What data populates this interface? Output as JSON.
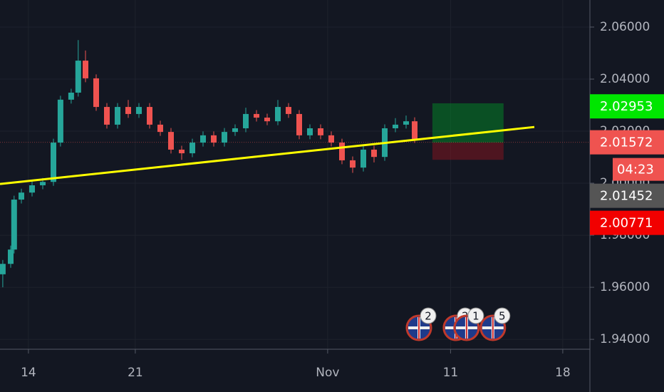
{
  "chart_data": {
    "type": "candlestick",
    "x": [
      -1.2,
      -0.83,
      -0.67,
      -0.33,
      0.17,
      0.67,
      1.17,
      1.5,
      2,
      2.33,
      2.67,
      3.17,
      3.67,
      4.17,
      4.67,
      5.17,
      5.67,
      6.17,
      6.67,
      7.17,
      7.67,
      8.17,
      8.67,
      9.17,
      9.67,
      10.17,
      10.67,
      11.17,
      11.67,
      12.17,
      12.67,
      13.17,
      13.67,
      14.17,
      14.67,
      15.17,
      15.67,
      16.17,
      16.67,
      17.17,
      17.67,
      18.07
    ],
    "open": [
      1.965,
      1.969,
      1.9745,
      1.9937,
      1.9964,
      1.9992,
      2.0005,
      2.0156,
      2.0321,
      2.0348,
      2.0471,
      2.0403,
      2.0293,
      2.0225,
      2.0293,
      2.0266,
      2.0293,
      2.0225,
      2.0197,
      2.0129,
      2.0115,
      2.0156,
      2.0184,
      2.0156,
      2.0197,
      2.0211,
      2.0266,
      2.0252,
      2.0238,
      2.0293,
      2.0266,
      2.0184,
      2.0211,
      2.0184,
      2.0156,
      2.0088,
      2.006,
      2.0129,
      2.0101,
      2.0211,
      2.0225,
      2.0238
    ],
    "high": [
      1.9705,
      1.976,
      1.9952,
      1.9979,
      2.0007,
      2.002,
      2.0171,
      2.0336,
      2.0363,
      2.055,
      2.051,
      2.0418,
      2.0308,
      2.0308,
      2.032,
      2.0308,
      2.0308,
      2.024,
      2.0212,
      2.0144,
      2.0171,
      2.0199,
      2.0199,
      2.0212,
      2.0226,
      2.029,
      2.0281,
      2.0267,
      2.032,
      2.0308,
      2.0281,
      2.0226,
      2.0226,
      2.0199,
      2.0171,
      2.0103,
      2.0144,
      2.0144,
      2.0226,
      2.025,
      2.026,
      2.0253
    ],
    "low": [
      1.96,
      1.9675,
      1.973,
      1.9922,
      1.9949,
      1.9977,
      1.999,
      2.0141,
      2.0306,
      2.0333,
      2.0388,
      2.0278,
      2.021,
      2.021,
      2.0251,
      2.0251,
      2.021,
      2.0182,
      2.0114,
      2.009,
      2.01,
      2.0141,
      2.0141,
      2.0141,
      2.0182,
      2.0196,
      2.0237,
      2.0223,
      2.0223,
      2.0251,
      2.0169,
      2.0169,
      2.0169,
      2.0141,
      2.0073,
      2.004,
      2.0045,
      2.008,
      2.0086,
      2.0196,
      2.021,
      2.0155
    ],
    "close": [
      1.969,
      1.9745,
      1.9937,
      1.9964,
      1.9992,
      2.0005,
      2.0156,
      2.0321,
      2.0348,
      2.0471,
      2.0403,
      2.0293,
      2.0225,
      2.0293,
      2.0266,
      2.0293,
      2.0225,
      2.0197,
      2.0129,
      2.0115,
      2.0156,
      2.0184,
      2.0156,
      2.0197,
      2.0211,
      2.0266,
      2.0252,
      2.0238,
      2.0293,
      2.0266,
      2.0184,
      2.0211,
      2.0184,
      2.0156,
      2.0088,
      2.006,
      2.0129,
      2.0101,
      2.0211,
      2.0225,
      2.0238,
      2.017
    ],
    "up_color": "#26a69a",
    "down_color": "#ef5350",
    "xlim": [
      -1.33,
      26.27
    ],
    "ylim": [
      1.9362,
      2.0704
    ],
    "xticks": [
      {
        "value": 0,
        "label": "14"
      },
      {
        "value": 5,
        "label": "21"
      },
      {
        "value": 14,
        "label": "Nov"
      },
      {
        "value": 19.75,
        "label": "11"
      },
      {
        "value": 25,
        "label": "18"
      }
    ],
    "yticks": [
      {
        "value": 2.06,
        "label": "2.06000"
      },
      {
        "value": 2.04,
        "label": "2.04000"
      },
      {
        "value": 2.02,
        "label": "2.02000"
      },
      {
        "value": 2.0,
        "label": "2.00000"
      },
      {
        "value": 1.98,
        "label": "1.98000"
      },
      {
        "value": 1.96,
        "label": "1.96000"
      },
      {
        "value": 1.94,
        "label": "1.94000"
      }
    ],
    "grid": true,
    "trendline": {
      "x": [
        -1.33,
        23.67
      ],
      "y": [
        1.9997,
        2.0216
      ],
      "color": "#ffff00"
    },
    "position": {
      "x": [
        18.9,
        22.23
      ],
      "target": 2.0307,
      "entry": 2.0156,
      "stop": 2.009
    },
    "price_labels": [
      {
        "value": 2.02953,
        "color": "#00e600"
      },
      {
        "value": 2.01572,
        "color": "#ef5350",
        "countdown": "04:23"
      },
      {
        "value": 2.01452,
        "color": "#555555"
      },
      {
        "value": 2.00771,
        "color": "#f20000"
      }
    ],
    "events": [
      {
        "x": 18.27,
        "label": "2"
      },
      {
        "x": 20.0,
        "label": "2"
      },
      {
        "x": 20.5,
        "label": "1"
      },
      {
        "x": 21.73,
        "label": "5"
      }
    ]
  }
}
